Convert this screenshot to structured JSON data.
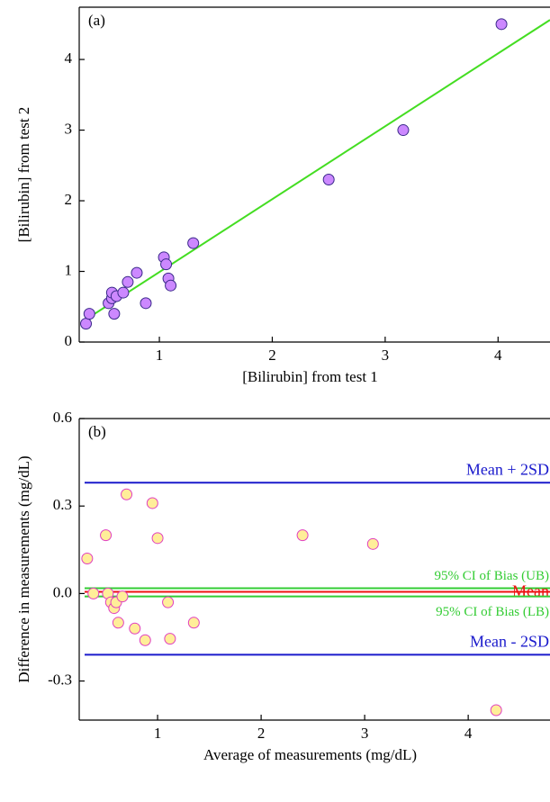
{
  "chart_data": [
    {
      "type": "scatter",
      "panel_label": "(a)",
      "xlabel": "[Bilirubin] from test 1",
      "ylabel": "[Bilirubin] from test 2",
      "xlim": [
        0.29,
        4.46
      ],
      "ylim": [
        0,
        4.74
      ],
      "xticks": [
        1,
        2,
        3,
        4
      ],
      "yticks": [
        0,
        1,
        2,
        3,
        4
      ],
      "points": {
        "color": "#cc88ff",
        "edge": "#3a2a8a",
        "x": [
          0.35,
          0.38,
          0.55,
          0.58,
          0.58,
          0.6,
          0.62,
          0.68,
          0.72,
          0.8,
          0.88,
          1.04,
          1.06,
          1.08,
          1.1,
          1.3,
          2.5,
          3.16,
          4.03
        ],
        "y": [
          0.26,
          0.4,
          0.55,
          0.62,
          0.7,
          0.4,
          0.65,
          0.7,
          0.85,
          0.98,
          0.55,
          1.2,
          1.1,
          0.9,
          0.8,
          1.4,
          2.3,
          3.0,
          4.5
        ]
      },
      "fit_line": {
        "color": "#44dd22",
        "x": [
          0.33,
          4.46
        ],
        "y": [
          0.3,
          4.56
        ]
      }
    },
    {
      "type": "bland-altman",
      "panel_label": "(b)",
      "xlabel": "Average of measurements (mg/dL)",
      "ylabel": "Difference in measurements (mg/dL)",
      "xlim": [
        0.243,
        4.79
      ],
      "ylim": [
        -0.434,
        0.6
      ],
      "xticks": [
        1,
        2,
        3,
        4
      ],
      "yticks": [
        0.6,
        0.3,
        {
          "value": 0,
          "label": "0.0"
        },
        -0.3
      ],
      "points": {
        "color": "#ffee99",
        "edge": "#e040c0",
        "x": [
          0.32,
          0.38,
          0.5,
          0.52,
          0.55,
          0.58,
          0.6,
          0.62,
          0.66,
          0.7,
          0.78,
          0.88,
          0.95,
          1.0,
          1.1,
          1.12,
          1.35,
          2.4,
          3.08,
          4.27
        ],
        "y": [
          0.12,
          0.0,
          0.2,
          0.0,
          -0.03,
          -0.05,
          -0.03,
          -0.1,
          -0.01,
          0.34,
          -0.12,
          -0.16,
          0.31,
          0.19,
          -0.03,
          -0.155,
          -0.1,
          0.2,
          0.17,
          -0.4
        ]
      },
      "reference_lines": [
        {
          "name": "Mean + 2SD",
          "value": 0.38,
          "color": "#1a1acc"
        },
        {
          "name": "95% CI of Bias (UB)",
          "value": 0.018,
          "color": "#33cc33"
        },
        {
          "name": "Mean",
          "value": 0.006,
          "color": "#ee1111"
        },
        {
          "name": "95% CI of Bias (LB)",
          "value": -0.01,
          "color": "#33cc33"
        },
        {
          "name": "Mean - 2SD",
          "value": -0.21,
          "color": "#1a1acc"
        }
      ]
    }
  ]
}
